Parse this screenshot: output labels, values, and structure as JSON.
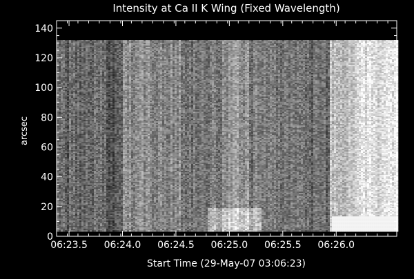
{
  "chart_data": {
    "type": "heatmap",
    "title": "Intensity at Ca II K Wing (Fixed Wavelength)",
    "xlabel": "Start Time (29-May-07 03:06:23)",
    "ylabel": "arcsec",
    "x_ticks": [
      "06:23.5",
      "06:24.0",
      "06:24.5",
      "06:25.0",
      "06:25.5",
      "06:26.0"
    ],
    "y_ticks": [
      "0",
      "20",
      "40",
      "60",
      "80",
      "100",
      "120",
      "140"
    ],
    "xlim": [
      1403,
      1594
    ],
    "ylim": [
      0,
      145
    ],
    "data_extent": {
      "x": [
        1403,
        1594
      ],
      "y": [
        4,
        132
      ]
    },
    "colormap": "grayscale",
    "background_color": "#000000",
    "axis_color": "#ffffff"
  }
}
